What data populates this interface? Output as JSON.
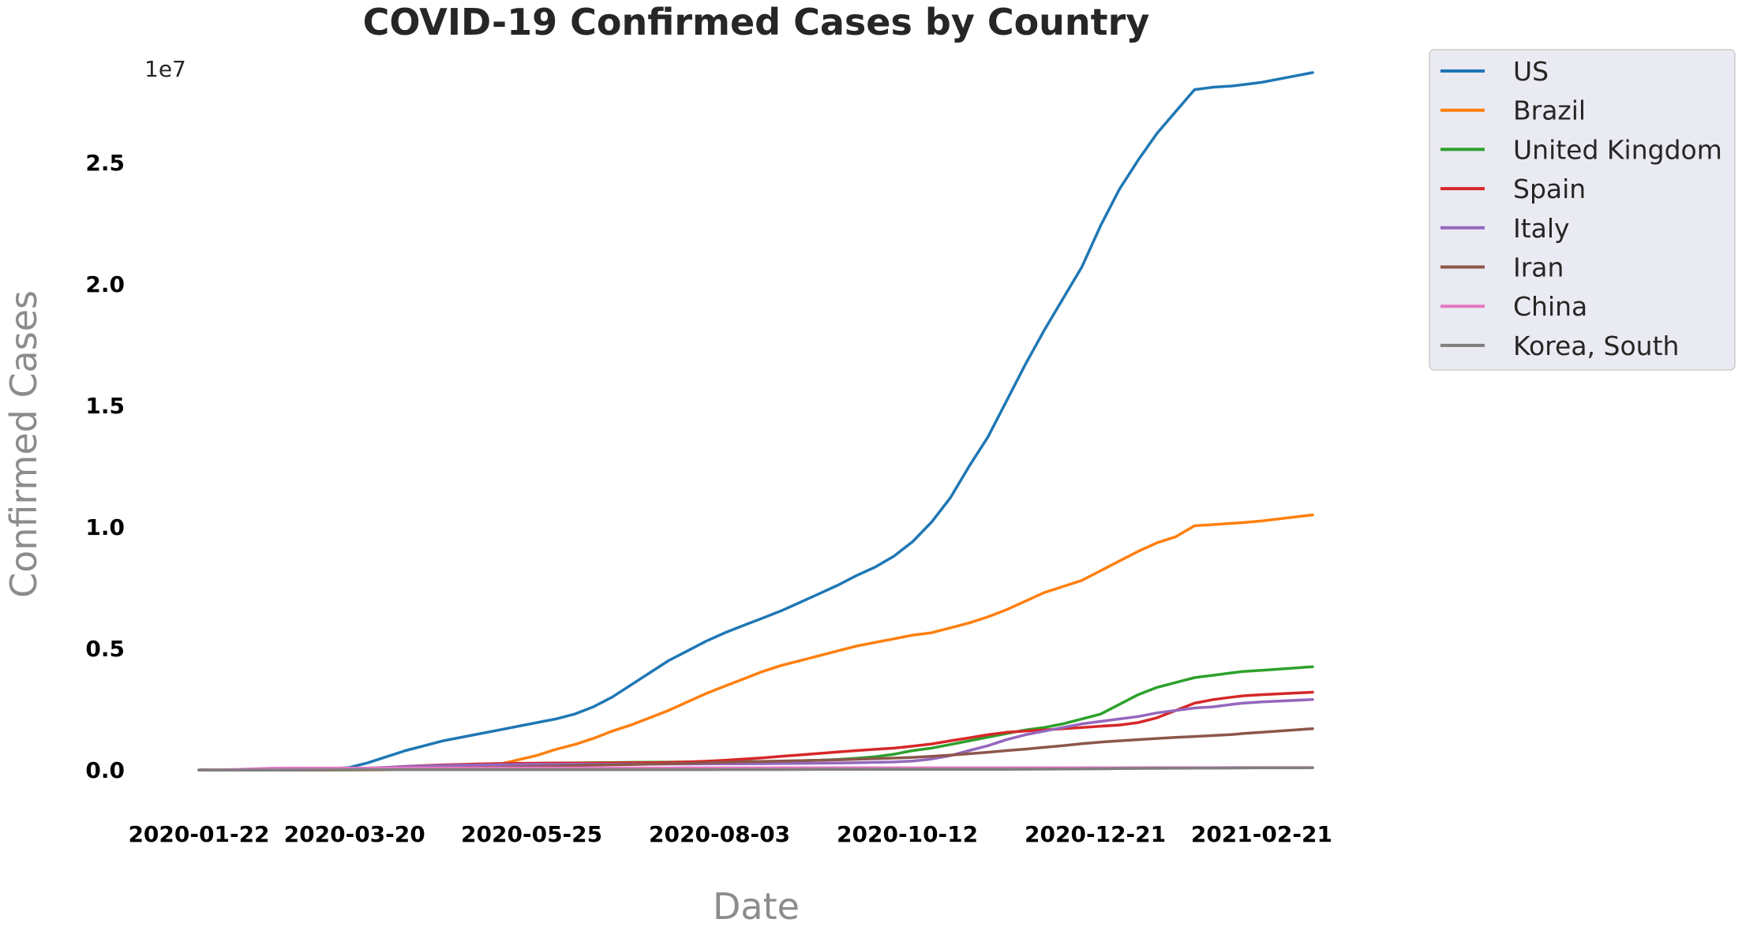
{
  "chart_data": {
    "type": "line",
    "title": "COVID-19 Confirmed Cases by Country",
    "xlabel": "Date",
    "ylabel": "Confirmed Cases",
    "y_offset_label": "1e7",
    "x_ticks": [
      "2020-01-22",
      "2020-03-20",
      "2020-05-25",
      "2020-08-03",
      "2020-10-12",
      "2020-12-21",
      "2021-02-21"
    ],
    "y_ticks": [
      "0.0",
      "0.5",
      "1.0",
      "1.5",
      "2.0",
      "2.5"
    ],
    "x_range": [
      "2020-01-22",
      "2021-03-12"
    ],
    "ylim": [
      -1750000,
      30000000
    ],
    "grid": false,
    "legend_position": "outside-top-right",
    "x": [
      "2020-01-22",
      "2020-02-05",
      "2020-02-19",
      "2020-03-04",
      "2020-03-18",
      "2020-03-25",
      "2020-04-01",
      "2020-04-08",
      "2020-04-15",
      "2020-04-22",
      "2020-04-29",
      "2020-05-06",
      "2020-05-13",
      "2020-05-20",
      "2020-05-27",
      "2020-06-03",
      "2020-06-10",
      "2020-06-17",
      "2020-06-24",
      "2020-07-01",
      "2020-07-08",
      "2020-07-15",
      "2020-07-22",
      "2020-07-29",
      "2020-08-05",
      "2020-08-12",
      "2020-08-19",
      "2020-08-26",
      "2020-09-02",
      "2020-09-09",
      "2020-09-16",
      "2020-09-23",
      "2020-09-30",
      "2020-10-07",
      "2020-10-14",
      "2020-10-21",
      "2020-10-28",
      "2020-11-04",
      "2020-11-11",
      "2020-11-18",
      "2020-11-25",
      "2020-12-02",
      "2020-12-09",
      "2020-12-16",
      "2020-12-23",
      "2020-12-30",
      "2021-01-06",
      "2021-01-13",
      "2021-01-20",
      "2021-01-27",
      "2021-02-03",
      "2021-02-10",
      "2021-02-14",
      "2021-02-21",
      "2021-03-12"
    ],
    "series": [
      {
        "name": "US",
        "color": "#1f77b4",
        "values": [
          0,
          0,
          0,
          0,
          100000,
          300000,
          550000,
          800000,
          1000000,
          1200000,
          1350000,
          1500000,
          1650000,
          1800000,
          1950000,
          2100000,
          2300000,
          2600000,
          3000000,
          3500000,
          4000000,
          4500000,
          4900000,
          5300000,
          5650000,
          5950000,
          6250000,
          6550000,
          6900000,
          7250000,
          7600000,
          8000000,
          8350000,
          8800000,
          9400000,
          10200000,
          11200000,
          12500000,
          13700000,
          15200000,
          16700000,
          18100000,
          19400000,
          20700000,
          22400000,
          23900000,
          25100000,
          26200000,
          27100000,
          28000000,
          28100000,
          28150000,
          28200000,
          28300000,
          28700000
        ]
      },
      {
        "name": "Brazil",
        "color": "#ff7f0e",
        "values": [
          0,
          0,
          0,
          0,
          0,
          0,
          5000,
          15000,
          30000,
          50000,
          80000,
          140000,
          240000,
          420000,
          600000,
          850000,
          1050000,
          1300000,
          1600000,
          1850000,
          2150000,
          2450000,
          2800000,
          3150000,
          3450000,
          3750000,
          4050000,
          4300000,
          4500000,
          4700000,
          4900000,
          5100000,
          5250000,
          5400000,
          5550000,
          5650000,
          5850000,
          6050000,
          6300000,
          6600000,
          6950000,
          7300000,
          7550000,
          7800000,
          8200000,
          8600000,
          9000000,
          9350000,
          9600000,
          10050000,
          10100000,
          10150000,
          10180000,
          10250000,
          10500000
        ]
      },
      {
        "name": "United Kingdom",
        "color": "#2ca02c",
        "values": [
          0,
          0,
          0,
          0,
          2000,
          9000,
          30000,
          70000,
          110000,
          150000,
          180000,
          210000,
          240000,
          260000,
          275000,
          285000,
          293000,
          298000,
          305000,
          315000,
          320000,
          325000,
          330000,
          335000,
          340000,
          345000,
          350000,
          360000,
          380000,
          400000,
          430000,
          480000,
          550000,
          650000,
          800000,
          900000,
          1050000,
          1200000,
          1350000,
          1500000,
          1650000,
          1750000,
          1900000,
          2100000,
          2300000,
          2700000,
          3100000,
          3400000,
          3600000,
          3800000,
          3900000,
          4000000,
          4050000,
          4100000,
          4250000
        ]
      },
      {
        "name": "Spain",
        "color": "#d62728",
        "values": [
          0,
          0,
          0,
          0,
          14000,
          50000,
          100000,
          150000,
          180000,
          210000,
          230000,
          250000,
          265000,
          275000,
          280000,
          285000,
          288000,
          290000,
          292000,
          297000,
          300000,
          310000,
          330000,
          360000,
          400000,
          450000,
          500000,
          560000,
          620000,
          680000,
          740000,
          800000,
          850000,
          900000,
          980000,
          1070000,
          1200000,
          1320000,
          1450000,
          1550000,
          1600000,
          1650000,
          1700000,
          1750000,
          1800000,
          1850000,
          1950000,
          2150000,
          2450000,
          2750000,
          2900000,
          3000000,
          3050000,
          3100000,
          3200000
        ]
      },
      {
        "name": "Italy",
        "color": "#9467bd",
        "values": [
          0,
          0,
          0,
          3000,
          35000,
          75000,
          110000,
          140000,
          165000,
          185000,
          200000,
          212000,
          222000,
          228000,
          232000,
          234000,
          236000,
          238000,
          240000,
          242000,
          243000,
          245000,
          247000,
          250000,
          253000,
          256000,
          260000,
          265000,
          270000,
          280000,
          290000,
          300000,
          315000,
          330000,
          370000,
          450000,
          590000,
          800000,
          1000000,
          1250000,
          1450000,
          1600000,
          1750000,
          1900000,
          2000000,
          2100000,
          2200000,
          2350000,
          2450000,
          2550000,
          2600000,
          2700000,
          2750000,
          2800000,
          2900000
        ]
      },
      {
        "name": "Iran",
        "color": "#8c564b",
        "values": [
          0,
          0,
          0,
          3000,
          18000,
          27000,
          47000,
          65000,
          77000,
          86000,
          93000,
          100000,
          110000,
          125000,
          140000,
          160000,
          180000,
          200000,
          215000,
          225000,
          240000,
          255000,
          275000,
          300000,
          320000,
          340000,
          355000,
          370000,
          385000,
          400000,
          420000,
          440000,
          465000,
          490000,
          520000,
          560000,
          610000,
          670000,
          730000,
          800000,
          860000,
          930000,
          1000000,
          1080000,
          1150000,
          1200000,
          1250000,
          1300000,
          1340000,
          1380000,
          1420000,
          1460000,
          1500000,
          1550000,
          1700000
        ]
      },
      {
        "name": "China",
        "color": "#e377c2",
        "values": [
          500,
          24000,
          75000,
          80000,
          81000,
          81500,
          82000,
          82500,
          83000,
          83500,
          84000,
          84000,
          84000,
          84000,
          84000,
          84000,
          84000,
          84500,
          84800,
          85000,
          85000,
          85500,
          86000,
          87000,
          88000,
          88500,
          89000,
          89500,
          90000,
          90000,
          90000,
          90500,
          91000,
          91000,
          91500,
          91800,
          92000,
          92200,
          92500,
          93000,
          93200,
          93500,
          94000,
          94500,
          95000,
          95500,
          96000,
          97000,
          97500,
          98000,
          98500,
          99000,
          99500,
          100000,
          100500
        ]
      },
      {
        "name": "Korea, South",
        "color": "#7f7f7f",
        "values": [
          1,
          20,
          50,
          5000,
          8000,
          9000,
          9500,
          10300,
          10600,
          10700,
          10800,
          10850,
          10900,
          11000,
          11300,
          11600,
          11900,
          12200,
          12500,
          12800,
          13100,
          13500,
          13900,
          14200,
          14600,
          15100,
          15700,
          16500,
          18500,
          21000,
          23000,
          24000,
          24500,
          25000,
          25500,
          26000,
          26700,
          27500,
          28500,
          30000,
          32000,
          35000,
          38000,
          44000,
          50000,
          57000,
          64000,
          68000,
          72000,
          76000,
          79000,
          82000,
          84000,
          86000,
          91000
        ]
      }
    ]
  }
}
